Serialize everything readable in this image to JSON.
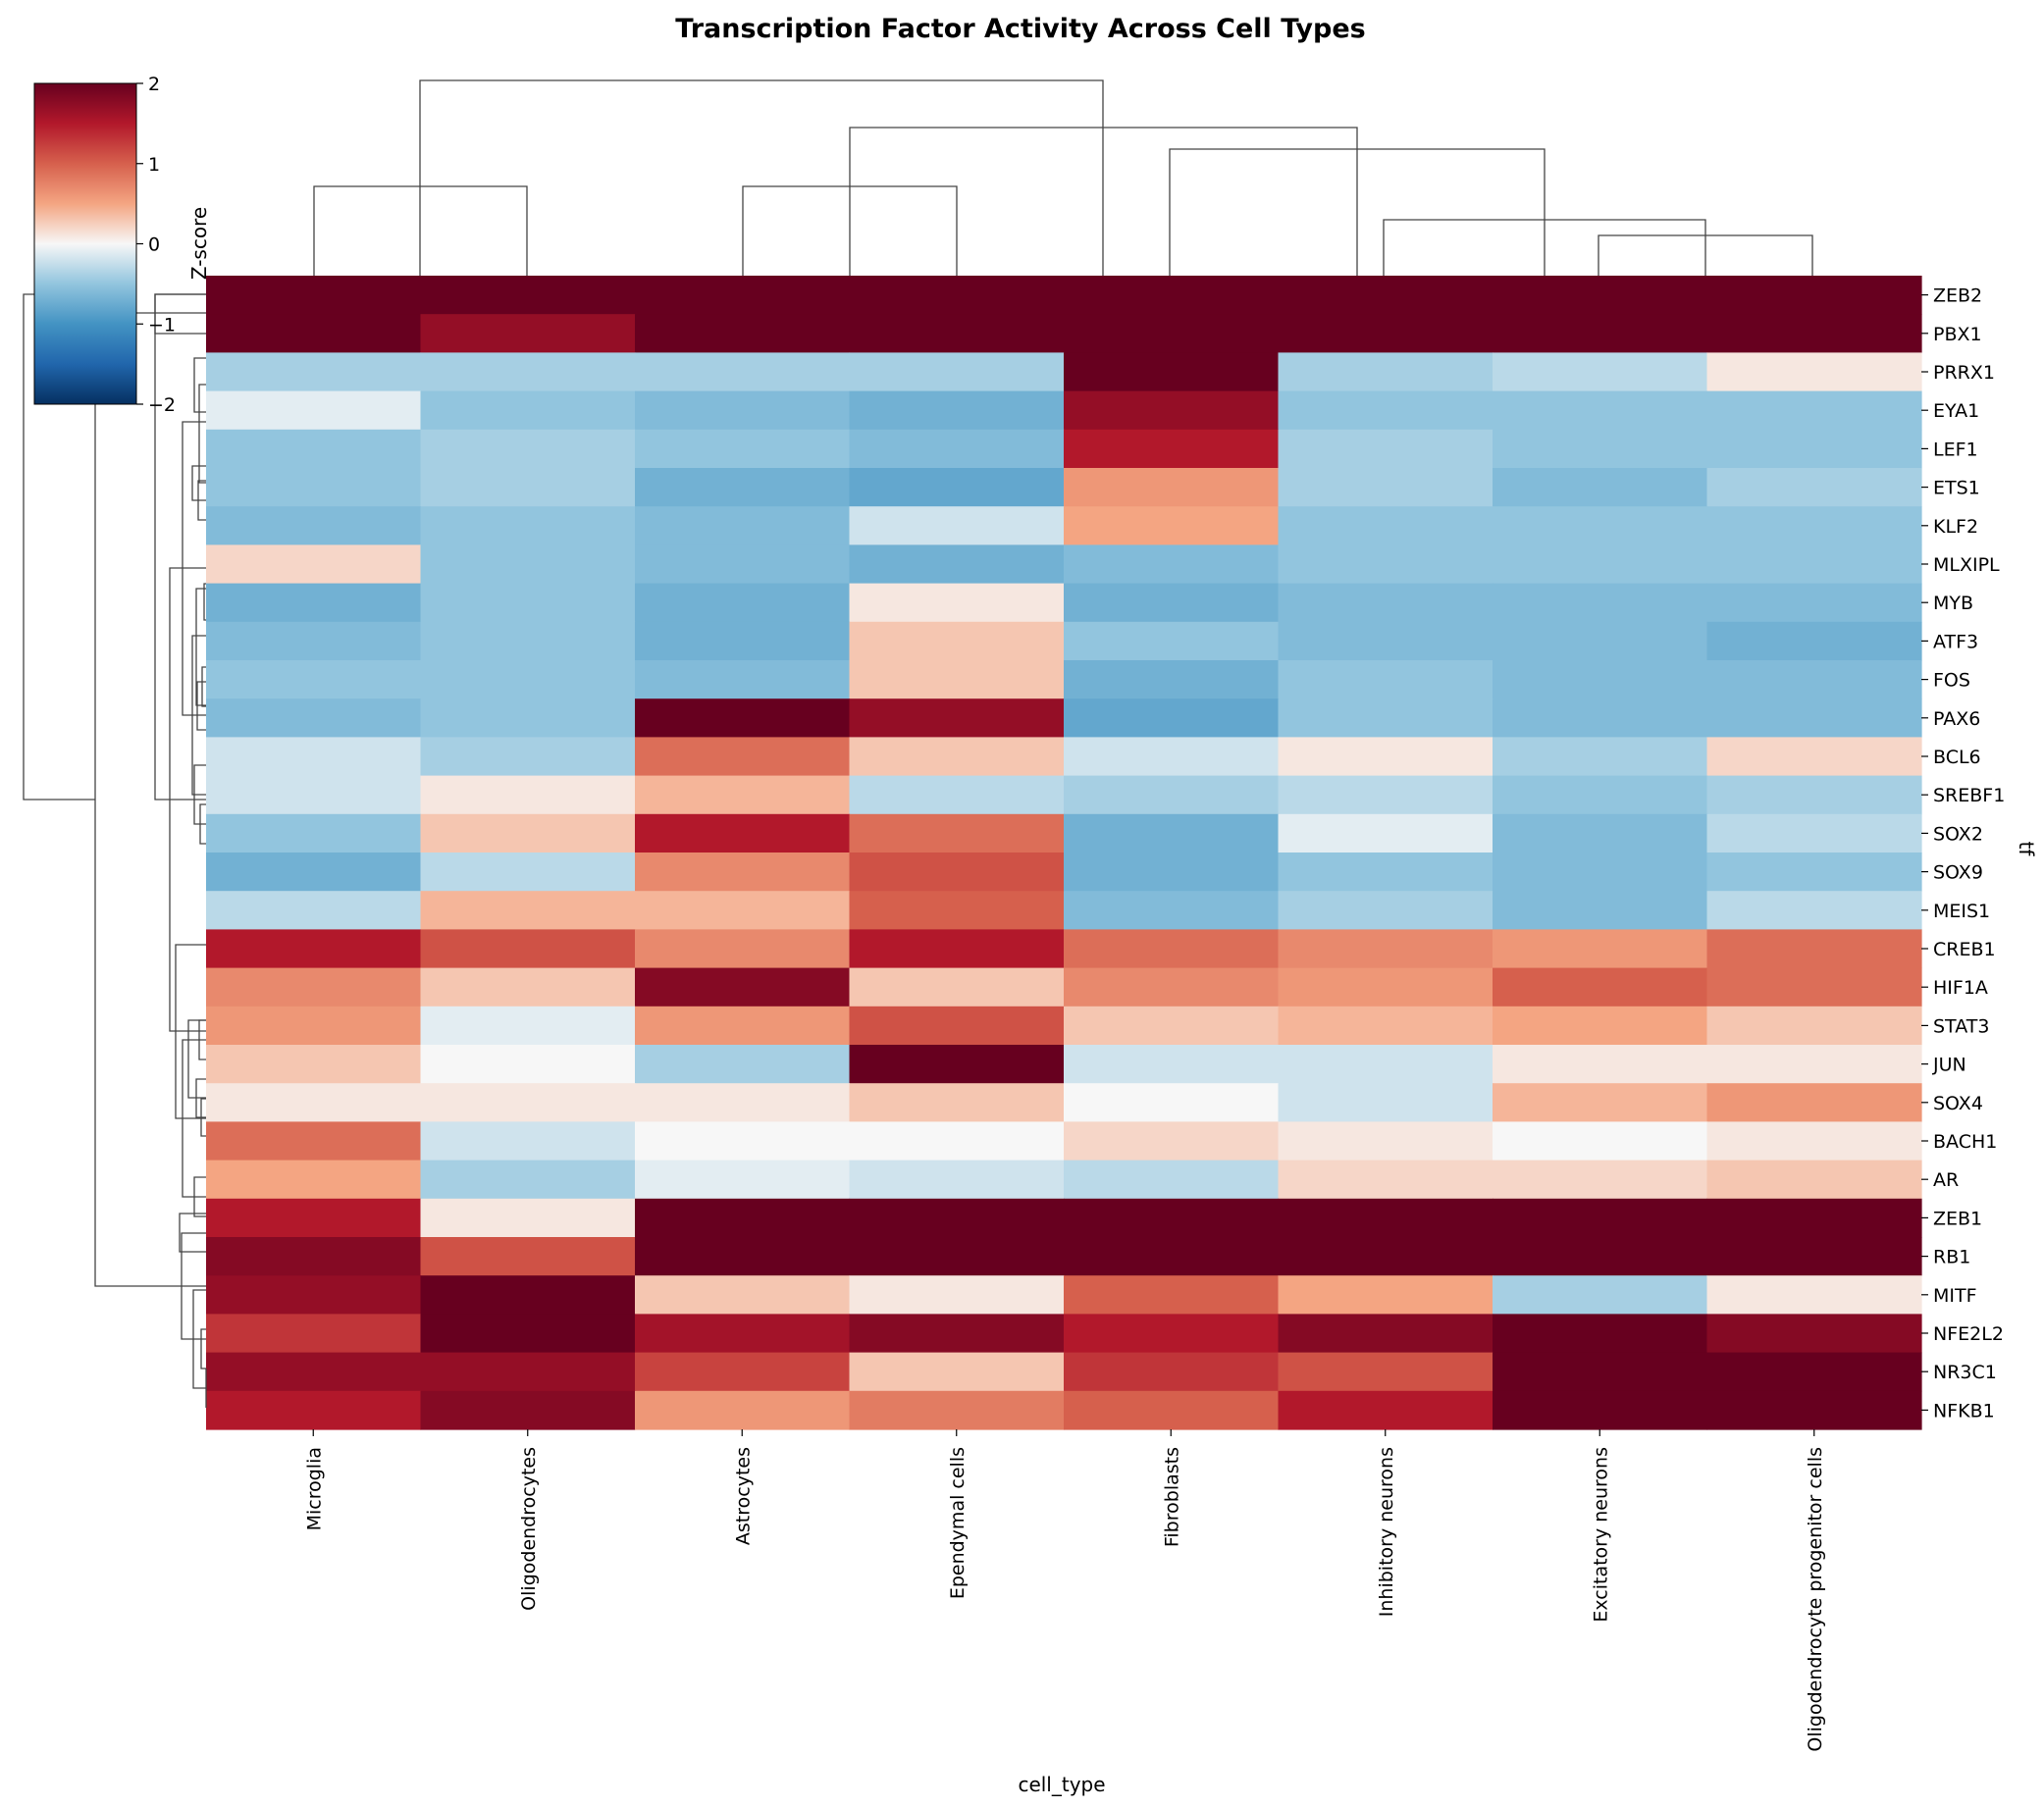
{
  "chart_data": {
    "type": "heatmap",
    "title": "Transcription Factor Activity Across Cell Types",
    "xlabel": "cell_type",
    "ylabel": "tf",
    "colorbar": {
      "label": "Z-score",
      "range": [
        -2,
        2
      ],
      "ticks": [
        -2,
        -1,
        0,
        1,
        2
      ],
      "tick_labels": [
        "−2",
        "−1",
        "0",
        "1",
        "2"
      ],
      "colormap": "RdBu_r",
      "placement": "top-left"
    },
    "columns": [
      "Microglia",
      "Oligodendrocytes",
      "Astrocytes",
      "Ependymal cells",
      "Fibroblasts",
      "Inhibitory neurons",
      "Excitatory neurons",
      "Oligodendrocyte progenitor cells"
    ],
    "rows": [
      "ZEB2",
      "PBX1",
      "PRRX1",
      "EYA1",
      "LEF1",
      "ETS1",
      "KLF2",
      "MLXIPL",
      "MYB",
      "ATF3",
      "FOS",
      "PAX6",
      "BCL6",
      "SREBF1",
      "SOX2",
      "SOX9",
      "MEIS1",
      "CREB1",
      "HIF1A",
      "STAT3",
      "JUN",
      "SOX4",
      "BACH1",
      "AR",
      "ZEB1",
      "RB1",
      "MITF",
      "NFE2L2",
      "NR3C1",
      "NFKB1"
    ],
    "values": [
      [
        2.6,
        2.6,
        2.6,
        2.6,
        2.6,
        2.6,
        2.6,
        2.6
      ],
      [
        2.6,
        1.7,
        2.6,
        2.6,
        2.6,
        2.6,
        2.6,
        2.6
      ],
      [
        -0.4,
        -0.4,
        -0.4,
        -0.4,
        2.6,
        -0.4,
        -0.3,
        0.1
      ],
      [
        -0.1,
        -0.5,
        -0.6,
        -0.7,
        1.7,
        -0.5,
        -0.5,
        -0.5
      ],
      [
        -0.5,
        -0.4,
        -0.5,
        -0.6,
        1.5,
        -0.4,
        -0.5,
        -0.5
      ],
      [
        -0.5,
        -0.4,
        -0.7,
        -0.8,
        0.6,
        -0.4,
        -0.6,
        -0.4
      ],
      [
        -0.6,
        -0.5,
        -0.6,
        -0.2,
        0.5,
        -0.5,
        -0.5,
        -0.5
      ],
      [
        0.2,
        -0.5,
        -0.6,
        -0.7,
        -0.6,
        -0.5,
        -0.5,
        -0.5
      ],
      [
        -0.7,
        -0.5,
        -0.7,
        0.1,
        -0.7,
        -0.6,
        -0.6,
        -0.6
      ],
      [
        -0.6,
        -0.5,
        -0.7,
        0.3,
        -0.5,
        -0.6,
        -0.6,
        -0.7
      ],
      [
        -0.5,
        -0.5,
        -0.6,
        0.3,
        -0.7,
        -0.5,
        -0.6,
        -0.6
      ],
      [
        -0.6,
        -0.5,
        2.6,
        1.7,
        -0.8,
        -0.5,
        -0.6,
        -0.6
      ],
      [
        -0.2,
        -0.4,
        0.9,
        0.3,
        -0.2,
        0.1,
        -0.4,
        0.2
      ],
      [
        -0.2,
        0.1,
        0.4,
        -0.3,
        -0.4,
        -0.3,
        -0.5,
        -0.4
      ],
      [
        -0.5,
        0.3,
        1.5,
        0.9,
        -0.7,
        -0.1,
        -0.6,
        -0.3
      ],
      [
        -0.7,
        -0.3,
        0.7,
        1.1,
        -0.7,
        -0.5,
        -0.6,
        -0.5
      ],
      [
        -0.3,
        0.4,
        0.4,
        1.0,
        -0.6,
        -0.4,
        -0.6,
        -0.3
      ],
      [
        1.5,
        1.1,
        0.7,
        1.5,
        0.9,
        0.7,
        0.6,
        0.9
      ],
      [
        0.7,
        0.3,
        1.8,
        0.3,
        0.7,
        0.6,
        1.0,
        0.9
      ],
      [
        0.6,
        -0.1,
        0.6,
        1.1,
        0.3,
        0.4,
        0.5,
        0.3
      ],
      [
        0.3,
        0.0,
        -0.4,
        2.6,
        -0.2,
        -0.2,
        0.1,
        0.1
      ],
      [
        0.1,
        0.1,
        0.1,
        0.3,
        -0.0,
        -0.2,
        0.4,
        0.6
      ],
      [
        0.9,
        -0.2,
        0.0,
        -0.0,
        0.2,
        0.1,
        0.0,
        0.1
      ],
      [
        0.5,
        -0.4,
        -0.1,
        -0.2,
        -0.3,
        0.2,
        0.2,
        0.3
      ],
      [
        1.5,
        0.1,
        2.6,
        2.6,
        2.6,
        2.6,
        2.2,
        2.5
      ],
      [
        1.8,
        1.1,
        2.6,
        2.6,
        2.6,
        2.6,
        2.4,
        2.3
      ],
      [
        1.7,
        2.6,
        0.3,
        0.1,
        1.0,
        0.5,
        -0.4,
        0.1
      ],
      [
        1.3,
        2.1,
        1.6,
        1.8,
        1.5,
        1.8,
        2.1,
        1.8
      ],
      [
        1.7,
        1.7,
        1.2,
        0.3,
        1.3,
        1.1,
        2.6,
        2.6
      ],
      [
        1.5,
        1.8,
        0.6,
        0.8,
        1.0,
        1.5,
        2.6,
        2.2
      ]
    ]
  }
}
